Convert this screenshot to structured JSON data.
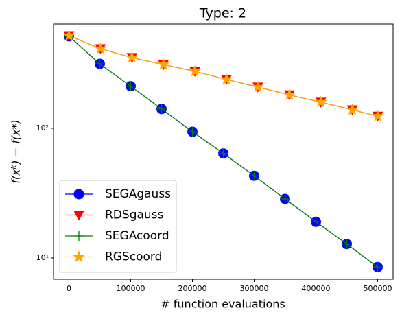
{
  "chart_data": {
    "type": "line",
    "title": "Type: 2",
    "x_label": "# function evaluations",
    "y_label": "f(xᵏ) − f(x*)",
    "log_y": true,
    "grid": false,
    "legend": "lower left",
    "xlim": [
      -25000,
      525000
    ],
    "xticks": [
      0,
      100000,
      200000,
      300000,
      400000,
      500000
    ],
    "ylim": [
      6.85,
      637
    ],
    "yticks": [
      {
        "value": 10,
        "label": "10¹"
      },
      {
        "value": 100,
        "label": "10²"
      }
    ],
    "series": [
      {
        "name": "SEGAgauss",
        "color": "#0000ff",
        "marker": "circle",
        "x": [
          0,
          50000,
          100000,
          150000,
          200000,
          250000,
          300000,
          350000,
          400000,
          450000,
          500000
        ],
        "values": [
          512,
          314,
          211,
          141,
          94,
          64,
          43,
          28.5,
          19,
          12.8,
          8.5
        ]
      },
      {
        "name": "RDSgauss",
        "color": "#ff0000",
        "marker": "triangle",
        "x": [
          0,
          51000,
          102000,
          153000,
          204000,
          255000,
          306000,
          357000,
          408000,
          459000,
          500000
        ],
        "values": [
          518,
          411,
          351,
          310,
          275,
          238,
          208,
          181,
          159,
          139,
          124
        ]
      },
      {
        "name": "SEGAcoord",
        "color": "#008000",
        "marker": "plus",
        "x": [
          0,
          50000,
          100000,
          150000,
          200000,
          250000,
          300000,
          350000,
          400000,
          450000,
          500000
        ],
        "values": [
          512,
          314,
          211,
          141,
          94,
          64,
          43,
          28.5,
          19,
          12.8,
          8.5
        ]
      },
      {
        "name": "RGScoord",
        "color": "#ffa500",
        "marker": "star",
        "x": [
          0,
          51000,
          102000,
          153000,
          204000,
          255000,
          306000,
          357000,
          408000,
          459000,
          500000
        ],
        "values": [
          518,
          411,
          351,
          310,
          275,
          238,
          208,
          181,
          159,
          139,
          124
        ]
      }
    ]
  }
}
